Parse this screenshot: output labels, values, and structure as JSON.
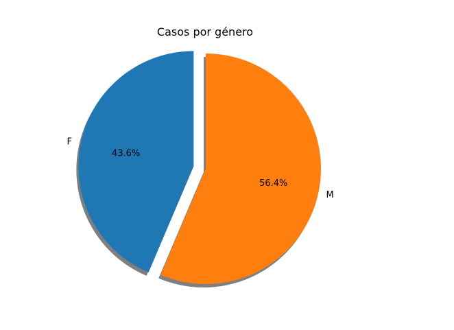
{
  "chart_data": {
    "type": "pie",
    "title": "Casos por género",
    "categories": [
      "F",
      "M"
    ],
    "values": [
      43.6,
      56.4
    ],
    "value_labels": [
      "43.6%",
      "56.4%"
    ],
    "colors": [
      "#1f77b4",
      "#ff7f0e"
    ],
    "shadow": true,
    "exploded": [
      "F"
    ],
    "start_angle_deg": 90,
    "direction": "counterclockwise",
    "legend": "none"
  }
}
